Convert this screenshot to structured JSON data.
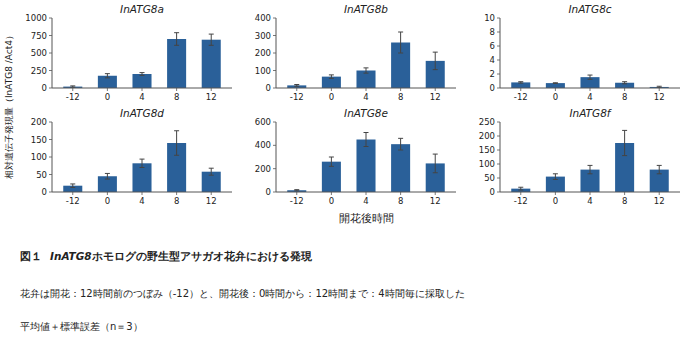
{
  "chart_data": [
    {
      "type": "bar",
      "title": "InATG8a",
      "categories": [
        "-12",
        "0",
        "4",
        "8",
        "12"
      ],
      "values": [
        20,
        175,
        200,
        700,
        690
      ],
      "errors": [
        10,
        30,
        20,
        90,
        80
      ],
      "color": "#2a6099",
      "ylim": [
        0,
        1000
      ],
      "yticks": [
        0,
        250,
        500,
        750,
        1000
      ],
      "grid": false
    },
    {
      "type": "bar",
      "title": "InATG8b",
      "categories": [
        "-12",
        "0",
        "4",
        "8",
        "12"
      ],
      "values": [
        15,
        65,
        100,
        260,
        155
      ],
      "errors": [
        5,
        10,
        15,
        60,
        50
      ],
      "color": "#2a6099",
      "ylim": [
        0,
        400
      ],
      "yticks": [
        0,
        100,
        200,
        300,
        400
      ],
      "grid": false
    },
    {
      "type": "bar",
      "title": "InATG8c",
      "categories": [
        "-12",
        "0",
        "4",
        "8",
        "12"
      ],
      "values": [
        0.8,
        0.7,
        1.55,
        0.75,
        0.15
      ],
      "errors": [
        0.1,
        0.05,
        0.3,
        0.15,
        0.1
      ],
      "color": "#2a6099",
      "ylim": [
        0,
        10
      ],
      "yticks": [
        0,
        2,
        4,
        6,
        8,
        10
      ],
      "grid": false
    },
    {
      "type": "bar",
      "title": "InATG8d",
      "categories": [
        "-12",
        "0",
        "4",
        "8",
        "12"
      ],
      "values": [
        18,
        45,
        82,
        140,
        58
      ],
      "errors": [
        5,
        8,
        12,
        35,
        10
      ],
      "color": "#2a6099",
      "ylim": [
        0,
        200
      ],
      "yticks": [
        0,
        50,
        100,
        150,
        200
      ],
      "grid": false
    },
    {
      "type": "bar",
      "title": "InATG8e",
      "categories": [
        "-12",
        "0",
        "4",
        "8",
        "12"
      ],
      "values": [
        15,
        260,
        450,
        410,
        245
      ],
      "errors": [
        5,
        40,
        60,
        50,
        80
      ],
      "color": "#2a6099",
      "ylim": [
        0,
        600
      ],
      "yticks": [
        0,
        200,
        400,
        600
      ],
      "grid": false
    },
    {
      "type": "bar",
      "title": "InATG8f",
      "categories": [
        "-12",
        "0",
        "4",
        "8",
        "12"
      ],
      "values": [
        12,
        55,
        80,
        175,
        80
      ],
      "errors": [
        5,
        10,
        15,
        45,
        15
      ],
      "color": "#2a6099",
      "ylim": [
        0,
        250
      ],
      "yticks": [
        0,
        50,
        100,
        150,
        200,
        250
      ],
      "grid": false
    }
  ],
  "xlabel": "開花後時間",
  "ylabel": "相対遺伝子発現量（InATG8 /Act4）",
  "annotations": [
    "図１",
    "InATG8",
    "ホモログの野生型アサガオ花弁における発現",
    "花弁は開花：12時間前のつぼみ（-12）と、開花後：0時間から：12時間まで：4時間毎に採取した",
    "平均値＋標準誤差（n＝3）"
  ]
}
